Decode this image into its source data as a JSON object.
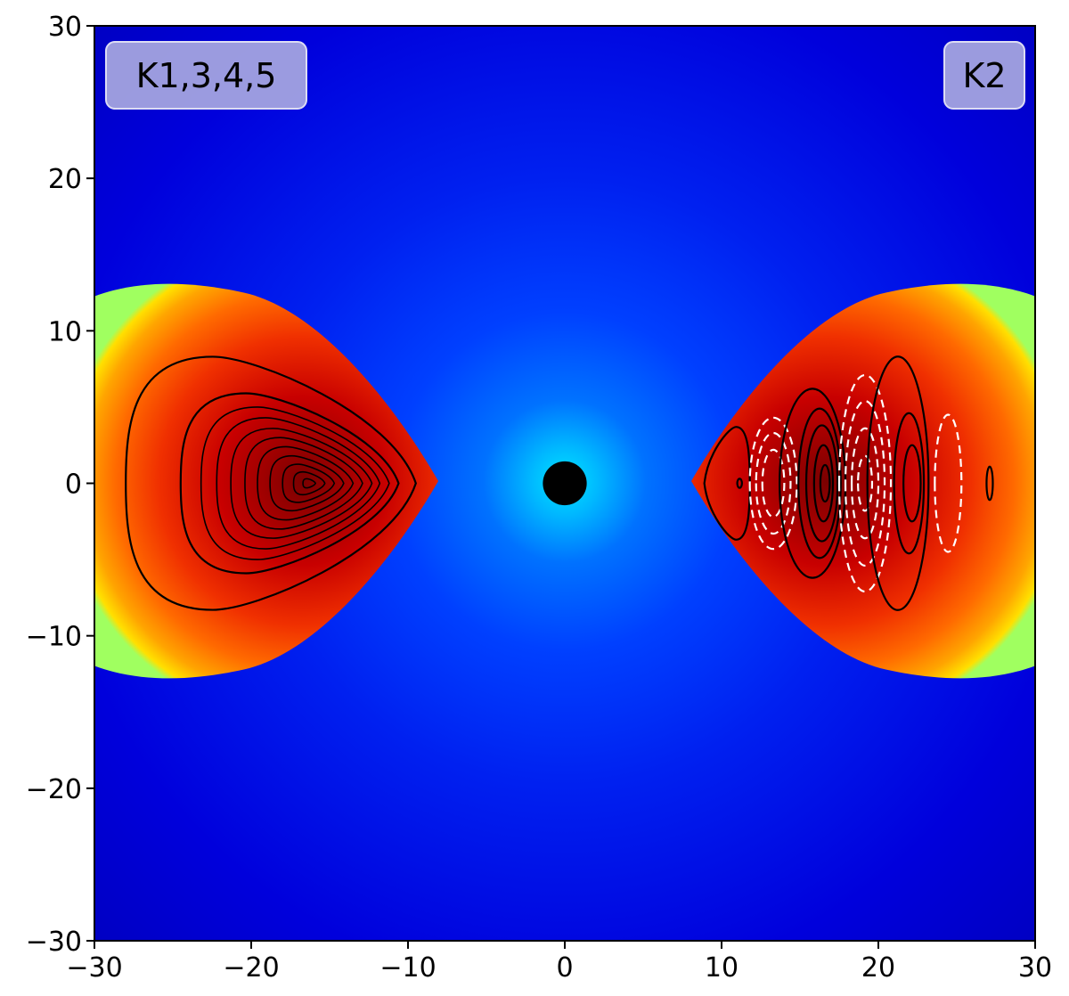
{
  "chart_data": {
    "type": "heatmap",
    "title": "",
    "xlabel": "",
    "ylabel": "",
    "xlim": [
      -30,
      30
    ],
    "ylim": [
      -30,
      30
    ],
    "x_ticks": [
      -30,
      -20,
      -10,
      0,
      10,
      20,
      30
    ],
    "y_ticks": [
      -30,
      -20,
      -10,
      0,
      10,
      20,
      30
    ],
    "x_tick_labels": [
      "−30",
      "−20",
      "−10",
      "0",
      "10",
      "20",
      "30"
    ],
    "y_tick_labels": [
      "−30",
      "−20",
      "−10",
      "0",
      "10",
      "20",
      "30"
    ],
    "grid": false,
    "colormap": "jet",
    "background_color": "#0000d8",
    "central_object": {
      "x": 0,
      "y": 0,
      "radius": 1.4,
      "color": "#000000"
    },
    "panel_labels": [
      {
        "text": "K1,3,4,5",
        "side": "left"
      },
      {
        "text": "K2",
        "side": "right"
      }
    ],
    "tori": [
      {
        "label": "K1,3,4,5",
        "inner_edge_x": -8.2,
        "outer_edge_x": -30,
        "height_at_outer_edge": 12,
        "contour_center": {
          "x": -16.3,
          "y": 0
        },
        "contours": [
          {
            "style": "solid",
            "color": "#000000",
            "x_range": [
              -28,
              -9.5
            ],
            "y_half": 8.3
          },
          {
            "style": "solid",
            "color": "#000000",
            "x_range": [
              -24.5,
              -10.6
            ],
            "y_half": 5.9
          },
          {
            "style": "solid",
            "color": "#000000",
            "x_range": [
              -23.2,
              -11.2
            ],
            "y_half": 5.0
          },
          {
            "style": "solid",
            "color": "#000000",
            "x_range": [
              -22.2,
              -11.8
            ],
            "y_half": 4.3
          },
          {
            "style": "solid",
            "color": "#000000",
            "x_range": [
              -21.3,
              -12.3
            ],
            "y_half": 3.6
          },
          {
            "style": "solid",
            "color": "#000000",
            "x_range": [
              -20.4,
              -12.9
            ],
            "y_half": 3.0
          },
          {
            "style": "solid",
            "color": "#000000",
            "x_range": [
              -19.6,
              -13.5
            ],
            "y_half": 2.4
          },
          {
            "style": "solid",
            "color": "#000000",
            "x_range": [
              -18.8,
              -14.1
            ],
            "y_half": 1.8
          },
          {
            "style": "solid",
            "color": "#000000",
            "x_range": [
              -18.0,
              -14.7
            ],
            "y_half": 1.25
          },
          {
            "style": "solid",
            "color": "#000000",
            "x_range": [
              -17.3,
              -15.3
            ],
            "y_half": 0.75
          },
          {
            "style": "solid",
            "color": "#000000",
            "x_range": [
              -16.7,
              -15.9
            ],
            "y_half": 0.3
          }
        ]
      },
      {
        "label": "K2",
        "inner_edge_x": 8.2,
        "outer_edge_x": 30,
        "height_at_outer_edge": 12,
        "contours": [
          {
            "style": "solid",
            "color": "#000000",
            "x_range": [
              8.9,
              11.8
            ],
            "y_half": 3.7
          },
          {
            "style": "solid",
            "color": "#000000",
            "x_range": [
              11.0,
              11.3
            ],
            "y_half": 0.3
          },
          {
            "style": "dashed",
            "color": "#ffffff",
            "x_range": [
              11.8,
              14.8
            ],
            "y_half": 4.3
          },
          {
            "style": "dashed",
            "color": "#ffffff",
            "x_range": [
              12.2,
              14.4
            ],
            "y_half": 3.3
          },
          {
            "style": "dashed",
            "color": "#ffffff",
            "x_range": [
              12.6,
              14.0
            ],
            "y_half": 2.2
          },
          {
            "style": "solid",
            "color": "#000000",
            "x_range": [
              13.7,
              17.9
            ],
            "y_half": 6.2
          },
          {
            "style": "solid",
            "color": "#000000",
            "x_range": [
              14.9,
              17.6
            ],
            "y_half": 4.9
          },
          {
            "style": "solid",
            "color": "#000000",
            "x_range": [
              15.4,
              17.4
            ],
            "y_half": 3.8
          },
          {
            "style": "solid",
            "color": "#000000",
            "x_range": [
              15.9,
              17.1
            ],
            "y_half": 2.5
          },
          {
            "style": "solid",
            "color": "#000000",
            "x_range": [
              16.3,
              16.9
            ],
            "y_half": 1.2
          },
          {
            "style": "dashed",
            "color": "#ffffff",
            "x_range": [
              17.5,
              20.8
            ],
            "y_half": 7.1
          },
          {
            "style": "dashed",
            "color": "#ffffff",
            "x_range": [
              17.9,
              20.4
            ],
            "y_half": 5.4
          },
          {
            "style": "dashed",
            "color": "#ffffff",
            "x_range": [
              18.3,
              20.0
            ],
            "y_half": 3.6
          },
          {
            "style": "dashed",
            "color": "#ffffff",
            "x_range": [
              18.7,
              19.6
            ],
            "y_half": 1.8
          },
          {
            "style": "solid",
            "color": "#000000",
            "x_range": [
              19.3,
              23.2
            ],
            "y_half": 8.3
          },
          {
            "style": "solid",
            "color": "#000000",
            "x_range": [
              21.0,
              22.9
            ],
            "y_half": 4.6
          },
          {
            "style": "solid",
            "color": "#000000",
            "x_range": [
              21.6,
              22.7
            ],
            "y_half": 2.5
          },
          {
            "style": "dashed",
            "color": "#ffffff",
            "x_range": [
              23.6,
              25.3
            ],
            "y_half": 4.5
          },
          {
            "style": "solid",
            "color": "#000000",
            "x_range": [
              26.9,
              27.3
            ],
            "y_half": 1.1
          }
        ]
      }
    ]
  }
}
